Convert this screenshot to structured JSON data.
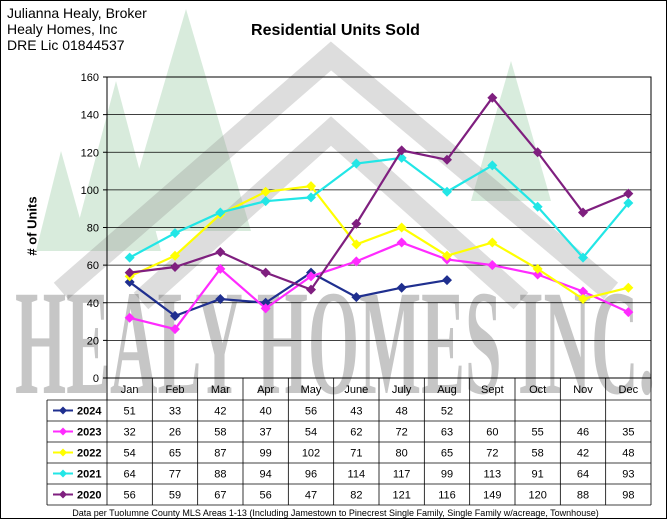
{
  "header": {
    "lines": [
      "Julianna Healy, Broker",
      "Healy Homes, Inc",
      "DRE Lic 01844537"
    ]
  },
  "watermark": {
    "text": "HEALY HOMES INC."
  },
  "footnote": "Data per Tuolumne County MLS Areas 1-13 (Including Jamestown to Pinecrest Single Family, Single Family w/acreage, Townhouse)",
  "chart_data": {
    "type": "line",
    "title": "Residential Units Sold",
    "xlabel": "",
    "ylabel": "# of Units",
    "ylim": [
      0,
      160
    ],
    "yticks": [
      0,
      20,
      40,
      60,
      80,
      100,
      120,
      140,
      160
    ],
    "grid": true,
    "legend": "data-table-below",
    "categories": [
      "Jan",
      "Feb",
      "Mar",
      "Apr",
      "May",
      "June",
      "July",
      "Aug",
      "Sept",
      "Oct",
      "Nov",
      "Dec"
    ],
    "series": [
      {
        "name": "2024",
        "color": "#1f2f8f",
        "values": [
          51,
          33,
          42,
          40,
          56,
          43,
          48,
          52,
          null,
          null,
          null,
          null
        ]
      },
      {
        "name": "2023",
        "color": "#ff2bff",
        "values": [
          32,
          26,
          58,
          37,
          54,
          62,
          72,
          63,
          60,
          55,
          46,
          35
        ]
      },
      {
        "name": "2022",
        "color": "#ffff00",
        "values": [
          54,
          65,
          87,
          99,
          102,
          71,
          80,
          65,
          72,
          58,
          42,
          48
        ]
      },
      {
        "name": "2021",
        "color": "#22e6e6",
        "values": [
          64,
          77,
          88,
          94,
          96,
          114,
          117,
          99,
          113,
          91,
          64,
          93
        ]
      },
      {
        "name": "2020",
        "color": "#7f1f7f",
        "values": [
          56,
          59,
          67,
          56,
          47,
          82,
          121,
          116,
          149,
          120,
          88,
          98
        ]
      }
    ]
  }
}
